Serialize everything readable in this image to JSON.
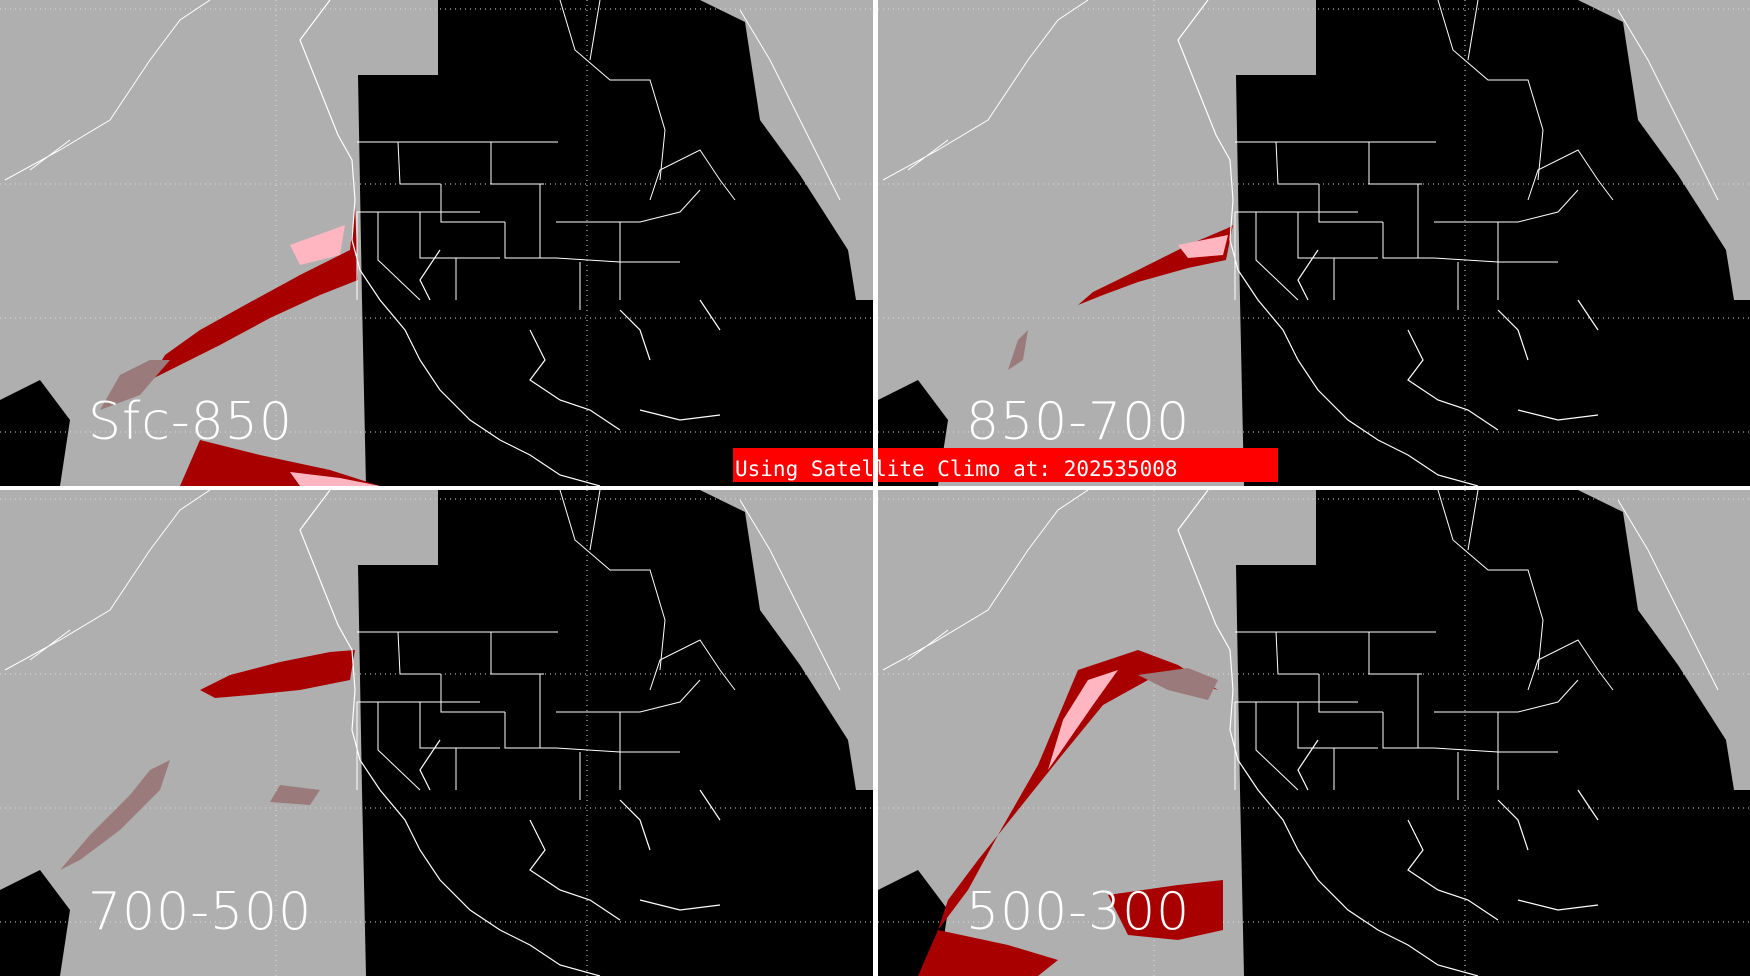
{
  "panels": [
    {
      "label": "Sfc-850"
    },
    {
      "label": "850-700"
    },
    {
      "label": "700-500"
    },
    {
      "label": "500-300"
    }
  ],
  "banner": {
    "text": "Using Satellite Climo at: 202535008"
  },
  "colors": {
    "background_no_data": "#afafaf",
    "clear": "#000000",
    "boundaries": "#ffffff",
    "moisture_high": "#a80000",
    "moisture_peak": "#ffb6c1",
    "moisture_low": "#9a7a7a",
    "banner": "#ff0000",
    "divider": "#ffffff"
  }
}
